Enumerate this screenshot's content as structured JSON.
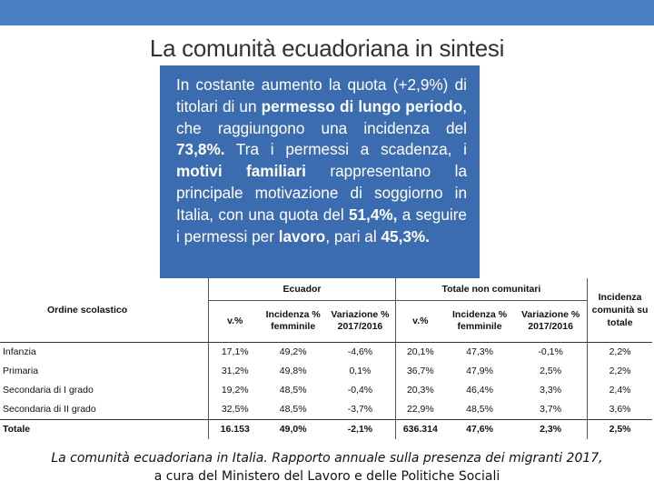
{
  "title": "La comunità ecuadoriana in sintesi",
  "summary": {
    "p1": "In costante aumento la quota (+2,9%) di titolari di un ",
    "b1": "permesso di lungo periodo",
    "p2": ", che raggiungono una incidenza del ",
    "b2": "73,8%.",
    "p3": " Tra i permessi a scadenza, i ",
    "b3": "motivi familiari",
    "p4": " rappresentano la principale motivazione di soggiorno in Italia, con una quota del ",
    "b4": "51,4%,",
    "p5": " a seguire i permessi per ",
    "b5": "lavoro",
    "p6": ", pari al ",
    "b6": "45,3%."
  },
  "table": {
    "order_header": "Ordine scolastico",
    "group1": "Ecuador",
    "group2": "Totale non comunitari",
    "incidence_header": "Incidenza comunità su totale",
    "subheaders": [
      "v.%",
      "Incidenza % femminile",
      "Variazione % 2017/2016",
      "v.%",
      "Incidenza % femminile",
      "Variazione % 2017/2016"
    ],
    "rows": [
      {
        "label": "Infanzia",
        "cells": [
          "17,1%",
          "49,2%",
          "-4,6%",
          "20,1%",
          "47,3%",
          "-0,1%",
          "2,2%"
        ]
      },
      {
        "label": "Primaria",
        "cells": [
          "31,2%",
          "49,8%",
          "0,1%",
          "36,7%",
          "47,9%",
          "2,5%",
          "2,2%"
        ]
      },
      {
        "label": "Secondaria di I grado",
        "cells": [
          "19,2%",
          "48,5%",
          "-0,4%",
          "20,3%",
          "46,4%",
          "3,3%",
          "2,4%"
        ]
      },
      {
        "label": "Secondaria di II grado",
        "cells": [
          "32,5%",
          "48,5%",
          "-3,7%",
          "22,9%",
          "48,5%",
          "3,7%",
          "3,6%"
        ]
      }
    ],
    "total": {
      "label": "Totale",
      "cells": [
        "16.153",
        "49,0%",
        "-2,1%",
        "636.314",
        "47,6%",
        "2,3%",
        "2,5%"
      ]
    }
  },
  "caption": {
    "line1": "La comunità ecuadoriana in Italia. Rapporto annuale sulla presenza dei migranti 2017,",
    "line2": "a cura del Ministero del Lavoro e delle Politiche Sociali"
  },
  "colors": {
    "topbar": "#4a7fc1",
    "box": "#3b6cb0"
  }
}
